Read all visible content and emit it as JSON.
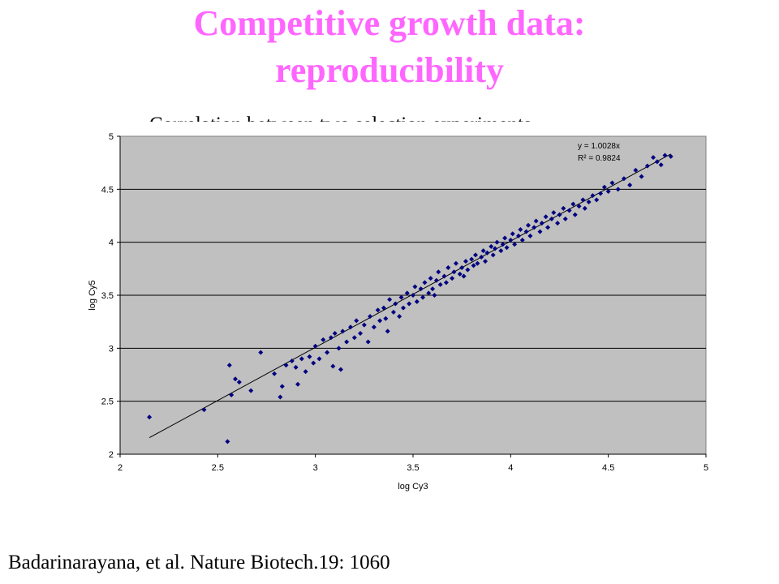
{
  "slide": {
    "title_line1": "Competitive growth data:",
    "title_line2": "reproducibility",
    "subtitle": "Correlation between two selection experiments",
    "citation": "Badarinarayana, et al. Nature Biotech.19: 1060"
  },
  "chart_data": {
    "type": "scatter",
    "title": "Correlation between two selection experiments",
    "xlabel": "log Cy3",
    "ylabel": "log Cy5",
    "xlim": [
      2,
      5
    ],
    "ylim": [
      2,
      5
    ],
    "xticks": [
      "2",
      "2.5",
      "3",
      "3.5",
      "4",
      "4.5",
      "5"
    ],
    "yticks": [
      "2",
      "2.5",
      "3",
      "3.5",
      "4",
      "4.5",
      "5"
    ],
    "grid": "horizontal",
    "plot_background": "#c0c0c0",
    "marker_color": "#000080",
    "trendline": {
      "slope": 1.0028,
      "intercept": 0,
      "x_range": [
        2.15,
        4.82
      ]
    },
    "equation": "y = 1.0028x",
    "r2_label": "R² = 0.9824",
    "series": [
      {
        "points": [
          [
            2.15,
            2.35
          ],
          [
            2.43,
            2.42
          ],
          [
            2.55,
            2.12
          ],
          [
            2.56,
            2.84
          ],
          [
            2.57,
            2.56
          ],
          [
            2.59,
            2.71
          ],
          [
            2.61,
            2.68
          ],
          [
            2.67,
            2.6
          ],
          [
            2.72,
            2.96
          ],
          [
            2.79,
            2.76
          ],
          [
            2.82,
            2.54
          ],
          [
            2.83,
            2.64
          ],
          [
            2.85,
            2.84
          ],
          [
            2.88,
            2.88
          ],
          [
            2.9,
            2.82
          ],
          [
            2.91,
            2.66
          ],
          [
            2.93,
            2.9
          ],
          [
            2.95,
            2.78
          ],
          [
            2.97,
            2.92
          ],
          [
            2.99,
            2.86
          ],
          [
            3.0,
            3.02
          ],
          [
            3.02,
            2.9
          ],
          [
            3.04,
            3.08
          ],
          [
            3.06,
            2.96
          ],
          [
            3.08,
            3.1
          ],
          [
            3.09,
            2.83
          ],
          [
            3.1,
            3.14
          ],
          [
            3.12,
            3.0
          ],
          [
            3.13,
            2.8
          ],
          [
            3.14,
            3.16
          ],
          [
            3.16,
            3.06
          ],
          [
            3.18,
            3.2
          ],
          [
            3.2,
            3.1
          ],
          [
            3.21,
            3.26
          ],
          [
            3.23,
            3.14
          ],
          [
            3.25,
            3.22
          ],
          [
            3.27,
            3.06
          ],
          [
            3.28,
            3.3
          ],
          [
            3.3,
            3.2
          ],
          [
            3.32,
            3.36
          ],
          [
            3.33,
            3.26
          ],
          [
            3.35,
            3.38
          ],
          [
            3.36,
            3.28
          ],
          [
            3.37,
            3.16
          ],
          [
            3.38,
            3.46
          ],
          [
            3.4,
            3.34
          ],
          [
            3.41,
            3.42
          ],
          [
            3.43,
            3.3
          ],
          [
            3.44,
            3.48
          ],
          [
            3.45,
            3.38
          ],
          [
            3.47,
            3.52
          ],
          [
            3.48,
            3.42
          ],
          [
            3.5,
            3.5
          ],
          [
            3.51,
            3.58
          ],
          [
            3.52,
            3.44
          ],
          [
            3.54,
            3.56
          ],
          [
            3.55,
            3.48
          ],
          [
            3.56,
            3.62
          ],
          [
            3.58,
            3.52
          ],
          [
            3.59,
            3.66
          ],
          [
            3.6,
            3.56
          ],
          [
            3.61,
            3.5
          ],
          [
            3.62,
            3.64
          ],
          [
            3.63,
            3.72
          ],
          [
            3.64,
            3.6
          ],
          [
            3.66,
            3.68
          ],
          [
            3.67,
            3.62
          ],
          [
            3.68,
            3.76
          ],
          [
            3.7,
            3.66
          ],
          [
            3.71,
            3.72
          ],
          [
            3.72,
            3.8
          ],
          [
            3.74,
            3.7
          ],
          [
            3.75,
            3.76
          ],
          [
            3.76,
            3.68
          ],
          [
            3.77,
            3.82
          ],
          [
            3.78,
            3.74
          ],
          [
            3.8,
            3.84
          ],
          [
            3.81,
            3.78
          ],
          [
            3.82,
            3.88
          ],
          [
            3.83,
            3.8
          ],
          [
            3.85,
            3.86
          ],
          [
            3.86,
            3.92
          ],
          [
            3.87,
            3.82
          ],
          [
            3.88,
            3.9
          ],
          [
            3.9,
            3.96
          ],
          [
            3.91,
            3.88
          ],
          [
            3.92,
            3.94
          ],
          [
            3.93,
            4.0
          ],
          [
            3.95,
            3.92
          ],
          [
            3.96,
            3.98
          ],
          [
            3.97,
            4.04
          ],
          [
            3.98,
            3.95
          ],
          [
            4.0,
            4.02
          ],
          [
            4.01,
            4.08
          ],
          [
            4.02,
            3.98
          ],
          [
            4.04,
            4.06
          ],
          [
            4.05,
            4.12
          ],
          [
            4.06,
            4.02
          ],
          [
            4.08,
            4.1
          ],
          [
            4.09,
            4.16
          ],
          [
            4.1,
            4.06
          ],
          [
            4.12,
            4.14
          ],
          [
            4.13,
            4.2
          ],
          [
            4.15,
            4.1
          ],
          [
            4.16,
            4.18
          ],
          [
            4.18,
            4.24
          ],
          [
            4.19,
            4.14
          ],
          [
            4.21,
            4.22
          ],
          [
            4.22,
            4.28
          ],
          [
            4.24,
            4.18
          ],
          [
            4.25,
            4.26
          ],
          [
            4.27,
            4.32
          ],
          [
            4.28,
            4.22
          ],
          [
            4.3,
            4.3
          ],
          [
            4.32,
            4.36
          ],
          [
            4.33,
            4.26
          ],
          [
            4.35,
            4.34
          ],
          [
            4.37,
            4.4
          ],
          [
            4.38,
            4.32
          ],
          [
            4.4,
            4.38
          ],
          [
            4.42,
            4.44
          ],
          [
            4.44,
            4.4
          ],
          [
            4.46,
            4.46
          ],
          [
            4.48,
            4.52
          ],
          [
            4.5,
            4.48
          ],
          [
            4.52,
            4.56
          ],
          [
            4.55,
            4.5
          ],
          [
            4.58,
            4.6
          ],
          [
            4.61,
            4.54
          ],
          [
            4.64,
            4.68
          ],
          [
            4.67,
            4.62
          ],
          [
            4.7,
            4.72
          ],
          [
            4.73,
            4.8
          ],
          [
            4.75,
            4.76
          ],
          [
            4.77,
            4.73
          ],
          [
            4.79,
            4.82
          ],
          [
            4.82,
            4.81
          ]
        ]
      }
    ]
  }
}
